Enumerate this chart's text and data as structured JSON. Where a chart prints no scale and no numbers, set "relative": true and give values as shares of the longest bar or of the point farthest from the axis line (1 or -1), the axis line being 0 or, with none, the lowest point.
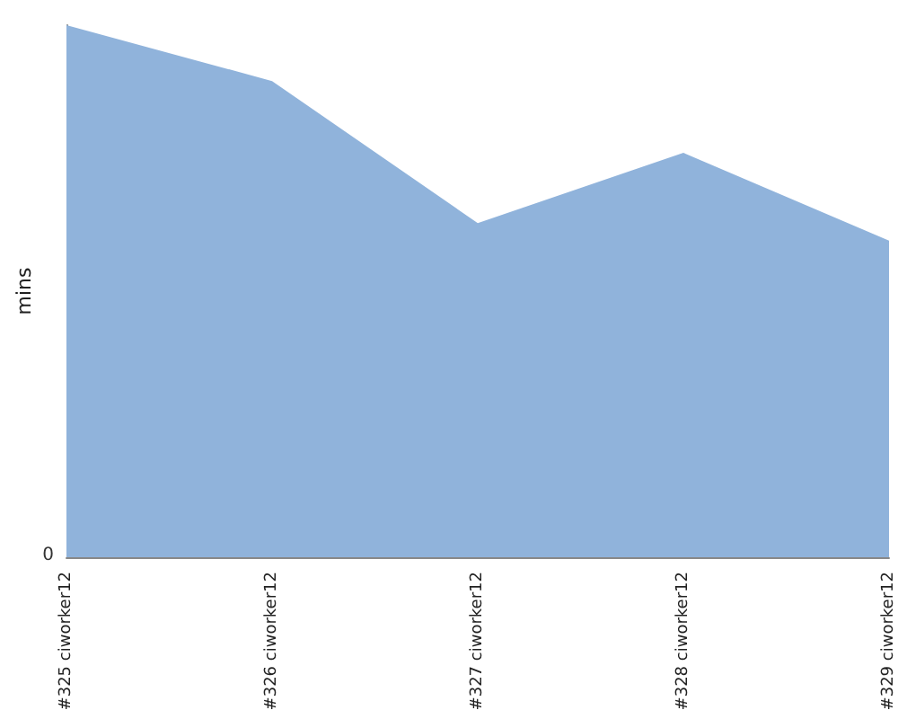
{
  "chart_data": {
    "type": "area",
    "ylabel": "mins",
    "relative": true,
    "categories": [
      "#325 ciworker12",
      "#326 ciworker12",
      "#327 ciworker12",
      "#328 ciworker12",
      "#329 ciworker12"
    ],
    "series": [
      {
        "color": "#90b3db",
        "values": [
          1,
          0.895,
          0.628,
          0.76,
          0.595
        ]
      }
    ],
    "annotations": [
      "0"
    ]
  }
}
